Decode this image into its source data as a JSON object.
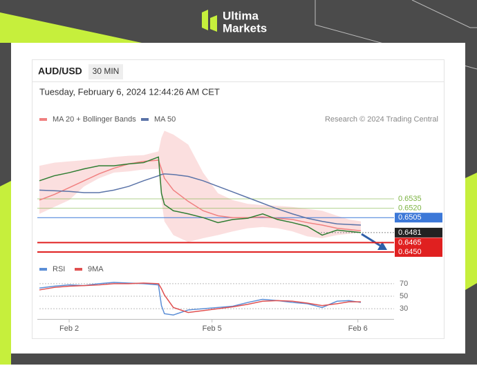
{
  "brand": {
    "line1": "Ultima",
    "line2": "Markets"
  },
  "header": {
    "symbol": "AUD/USD",
    "interval": "30 MIN",
    "timestamp": "Tuesday, February 6, 2024 12:44:26 AM CET",
    "source": "Research © 2024 Trading Central"
  },
  "chart_data": [
    {
      "type": "line",
      "x": [
        0,
        5,
        10,
        15,
        20,
        25,
        30,
        35,
        40,
        41,
        42,
        45,
        50,
        55,
        60,
        65,
        70,
        75,
        80,
        85,
        90,
        95,
        100,
        104,
        108
      ],
      "xlim": [
        0,
        108
      ],
      "ylim": [
        0.644,
        0.665
      ],
      "series": [
        {
          "name": "MA 20 + Bollinger Bands",
          "color": "#f08080",
          "values": [
            0.6533,
            0.6542,
            0.6553,
            0.6564,
            0.6575,
            0.6584,
            0.6591,
            0.6595,
            0.6597,
            0.6583,
            0.6568,
            0.6549,
            0.6531,
            0.6516,
            0.6508,
            0.6505,
            0.6505,
            0.6506,
            0.6504,
            0.6502,
            0.6497,
            0.6493,
            0.6488,
            0.6486,
            0.6484
          ],
          "upper": [
            0.6588,
            0.6593,
            0.6595,
            0.6597,
            0.6599,
            0.6602,
            0.6604,
            0.6605,
            0.6611,
            0.6633,
            0.6644,
            0.6638,
            0.6622,
            0.6577,
            0.6544,
            0.6533,
            0.6527,
            0.6525,
            0.6524,
            0.6522,
            0.6519,
            0.6516,
            0.6508,
            0.6502,
            0.6499
          ],
          "lower": [
            0.6511,
            0.6522,
            0.6533,
            0.6555,
            0.6568,
            0.6577,
            0.6579,
            0.6582,
            0.6583,
            0.6533,
            0.6499,
            0.6477,
            0.6466,
            0.6472,
            0.6477,
            0.6483,
            0.6488,
            0.649,
            0.6488,
            0.6483,
            0.6475,
            0.6472,
            0.6477,
            0.6479,
            0.6481
          ]
        },
        {
          "name": "MA 50",
          "color": "#5a73a8",
          "values": [
            0.6549,
            0.6548,
            0.6547,
            0.6545,
            0.6545,
            0.6549,
            0.6555,
            0.6564,
            0.6572,
            0.6574,
            0.6575,
            0.6574,
            0.6571,
            0.6564,
            0.6555,
            0.6546,
            0.6537,
            0.6528,
            0.6519,
            0.6511,
            0.6504,
            0.6499,
            0.6495,
            0.6494,
            0.6493
          ]
        },
        {
          "color": "#2e7d32",
          "values": [
            0.6564,
            0.6572,
            0.6577,
            0.6583,
            0.6588,
            0.6588,
            0.6591,
            0.6593,
            0.6602,
            0.6544,
            0.6526,
            0.6516,
            0.6511,
            0.6505,
            0.6497,
            0.6502,
            0.6504,
            0.6511,
            0.6502,
            0.6497,
            0.6491,
            0.6477,
            0.6485,
            0.6483,
            0.6481
          ]
        }
      ],
      "levels": [
        {
          "value": 0.6535,
          "color": "#7cb342",
          "boxed": false
        },
        {
          "value": 0.652,
          "label": "0.6520",
          "color": "#7cb342",
          "boxed": false
        },
        {
          "value": 0.6505,
          "color": "#3c78d8",
          "boxed": true
        },
        {
          "value": 0.6481,
          "color": "#222222",
          "boxed": true,
          "dashed": true
        },
        {
          "value": 0.6465,
          "color": "#e02020",
          "boxed": true
        },
        {
          "value": 0.645,
          "label": "0.6450",
          "color": "#e02020",
          "boxed": true
        }
      ]
    },
    {
      "type": "line",
      "x": [
        0,
        5,
        10,
        15,
        20,
        25,
        30,
        35,
        40,
        41,
        42,
        45,
        50,
        55,
        60,
        65,
        70,
        75,
        80,
        85,
        90,
        95,
        100,
        104,
        108
      ],
      "xlim": [
        0,
        108
      ],
      "ylim": [
        18,
        82
      ],
      "yticks": [
        70,
        50,
        30
      ],
      "grid": true,
      "xticks": [
        {
          "value": 10,
          "label": "Feb 2"
        },
        {
          "value": 58,
          "label": "Feb 5"
        },
        {
          "value": 107,
          "label": "Feb 6"
        }
      ],
      "series": [
        {
          "name": "RSI",
          "color": "#5b8ed6",
          "values": [
            63,
            66,
            68,
            67,
            70,
            72,
            71,
            70,
            68,
            35,
            22,
            20,
            28,
            30,
            32,
            34,
            40,
            45,
            43,
            40,
            38,
            32,
            42,
            43,
            40
          ]
        },
        {
          "name": "9MA",
          "color": "#e05050",
          "values": [
            60,
            64,
            66,
            67,
            68,
            70,
            70,
            71,
            70,
            62,
            52,
            32,
            24,
            27,
            30,
            33,
            37,
            42,
            43,
            42,
            39,
            35,
            38,
            41,
            41
          ]
        }
      ]
    }
  ]
}
